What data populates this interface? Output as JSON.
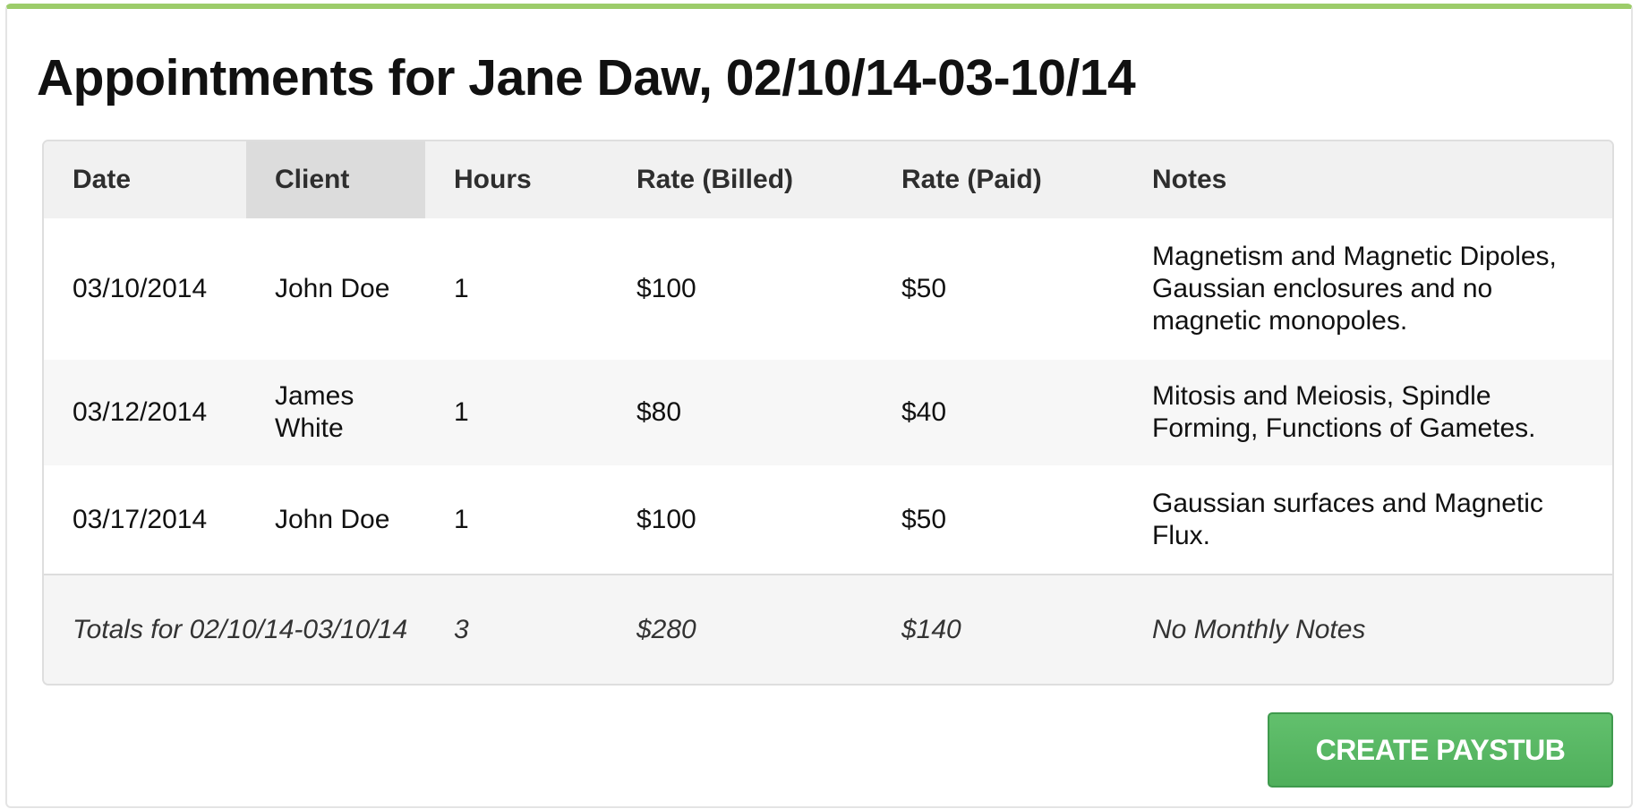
{
  "title": "Appointments for Jane Daw, 02/10/14-03-10/14",
  "table": {
    "headers": {
      "date": "Date",
      "client": "Client",
      "hours": "Hours",
      "rate_billed": "Rate (Billed)",
      "rate_paid": "Rate (Paid)",
      "notes": "Notes"
    },
    "rows": [
      {
        "date": "03/10/2014",
        "client": "John Doe",
        "hours": "1",
        "rate_billed": "$100",
        "rate_paid": "$50",
        "notes": "Magnetism and Magnetic Dipoles, Gaussian enclosures and no magnetic monopoles."
      },
      {
        "date": "03/12/2014",
        "client": "James White",
        "hours": "1",
        "rate_billed": "$80",
        "rate_paid": "$40",
        "notes": "Mitosis and Meiosis, Spindle Forming, Functions of Gametes."
      },
      {
        "date": "03/17/2014",
        "client": "John Doe",
        "hours": "1",
        "rate_billed": "$100",
        "rate_paid": "$50",
        "notes": "Gaussian surfaces and Magnetic Flux."
      }
    ],
    "totals": {
      "label": "Totals for 02/10/14-03/10/14",
      "hours": "3",
      "rate_billed": "$280",
      "rate_paid": "$140",
      "notes": "No Monthly Notes"
    }
  },
  "actions": {
    "create_paystub_label": "Create Paystub"
  },
  "colors": {
    "accent_top_border": "#9ccc6a",
    "button_green": "#5cb85c",
    "sorted_column_header": "#dcdcdc"
  }
}
